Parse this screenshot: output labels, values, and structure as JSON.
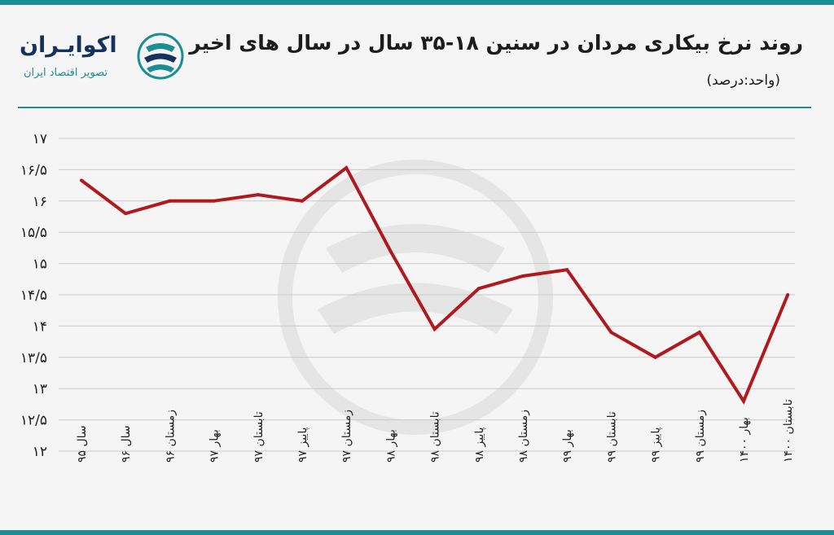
{
  "header": {
    "title": "روند نرخ بیکاری مردان در سنین ۱۸-۳۵ سال در سال های اخیر",
    "unit": "(واحد:درصد)"
  },
  "brand": {
    "name": "اکوایـران",
    "tagline": "تصویر اقتصاد ایران",
    "logo_icon": "ecoiran-logo-icon"
  },
  "colors": {
    "line": "#b0191e",
    "accent": "#1a8d95",
    "brand_dark": "#16325c",
    "grid": "#c9c9c9"
  },
  "chart_data": {
    "type": "line",
    "title": "روند نرخ بیکاری مردان در سنین ۱۸-۳۵ سال در سال های اخیر",
    "ylabel": "",
    "xlabel": "",
    "ylim": [
      12,
      17
    ],
    "grid": true,
    "categories": [
      "سال ۹۵",
      "سال ۹۶",
      "زمستان ۹۶",
      "بهار ۹۷",
      "تابستان ۹۷",
      "پاییز ۹۷",
      "زمستان ۹۷",
      "بهار ۹۸",
      "تابستان ۹۸",
      "پاییز ۹۸",
      "زمستان ۹۸",
      "بهار ۹۹",
      "تابستان ۹۹",
      "پاییز ۹۹",
      "زمستان ۹۹",
      "بهار ۱۴۰۰",
      "تابستان ۱۴۰۰"
    ],
    "values": [
      16.33,
      15.8,
      16.0,
      16.0,
      16.1,
      16.0,
      16.53,
      15.2,
      13.95,
      14.6,
      14.8,
      14.9,
      13.9,
      13.5,
      13.9,
      12.8,
      14.5
    ],
    "yticks": [
      12,
      12.5,
      13,
      13.5,
      14,
      14.5,
      15,
      15.5,
      16,
      16.5,
      17
    ],
    "ytick_labels": [
      "۱۲",
      "۱۲/۵",
      "۱۳",
      "۱۳/۵",
      "۱۴",
      "۱۴/۵",
      "۱۵",
      "۱۵/۵",
      "۱۶",
      "۱۶/۵",
      "۱۷"
    ]
  }
}
